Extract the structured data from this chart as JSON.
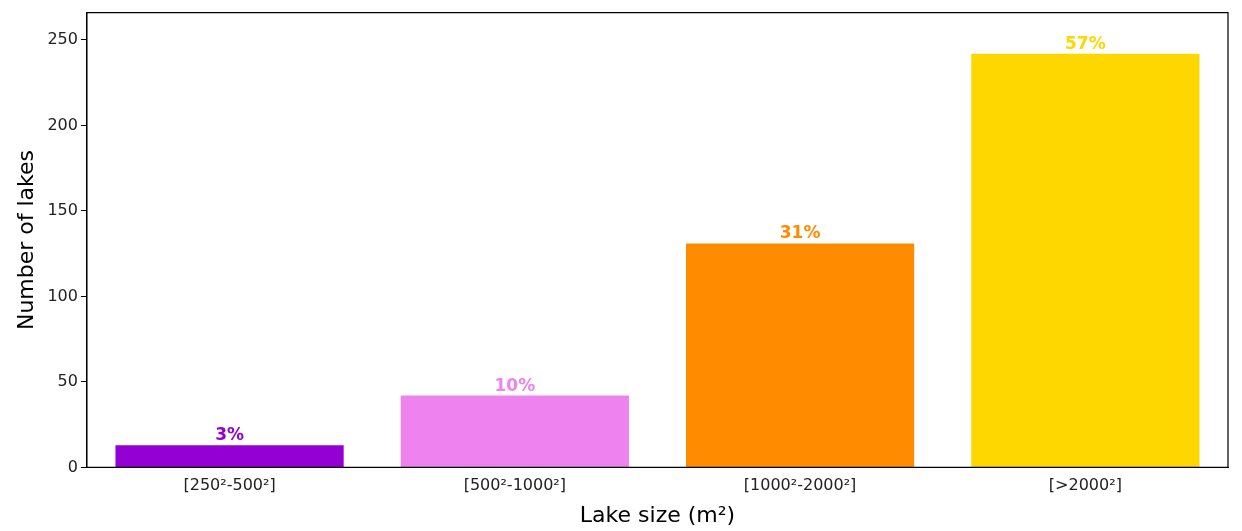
{
  "chart_data": {
    "type": "bar",
    "xlabel": "Lake size (m²)",
    "ylabel": "Number of lakes",
    "categories": [
      "[250²-500²]",
      "[500²-1000²]",
      "[1000²-2000²]",
      "[>2000²]"
    ],
    "values": [
      13,
      42,
      131,
      242
    ],
    "colors": [
      "#9400d3",
      "#ee82ee",
      "#ff8c00",
      "#ffd700"
    ],
    "annotations": [
      {
        "text": "3%",
        "x": "[250²-500²]",
        "y": 13
      },
      {
        "text": "10%",
        "x": "[500²-1000²]",
        "y": 42
      },
      {
        "text": "31%",
        "x": "[1000²-2000²]",
        "y": 131
      },
      {
        "text": "57%",
        "x": "[>2000²]",
        "y": 242
      }
    ],
    "ylim": [
      0,
      266
    ],
    "yticks": [
      0,
      50,
      100,
      150,
      200,
      250
    ],
    "grid": false,
    "legend": false
  }
}
